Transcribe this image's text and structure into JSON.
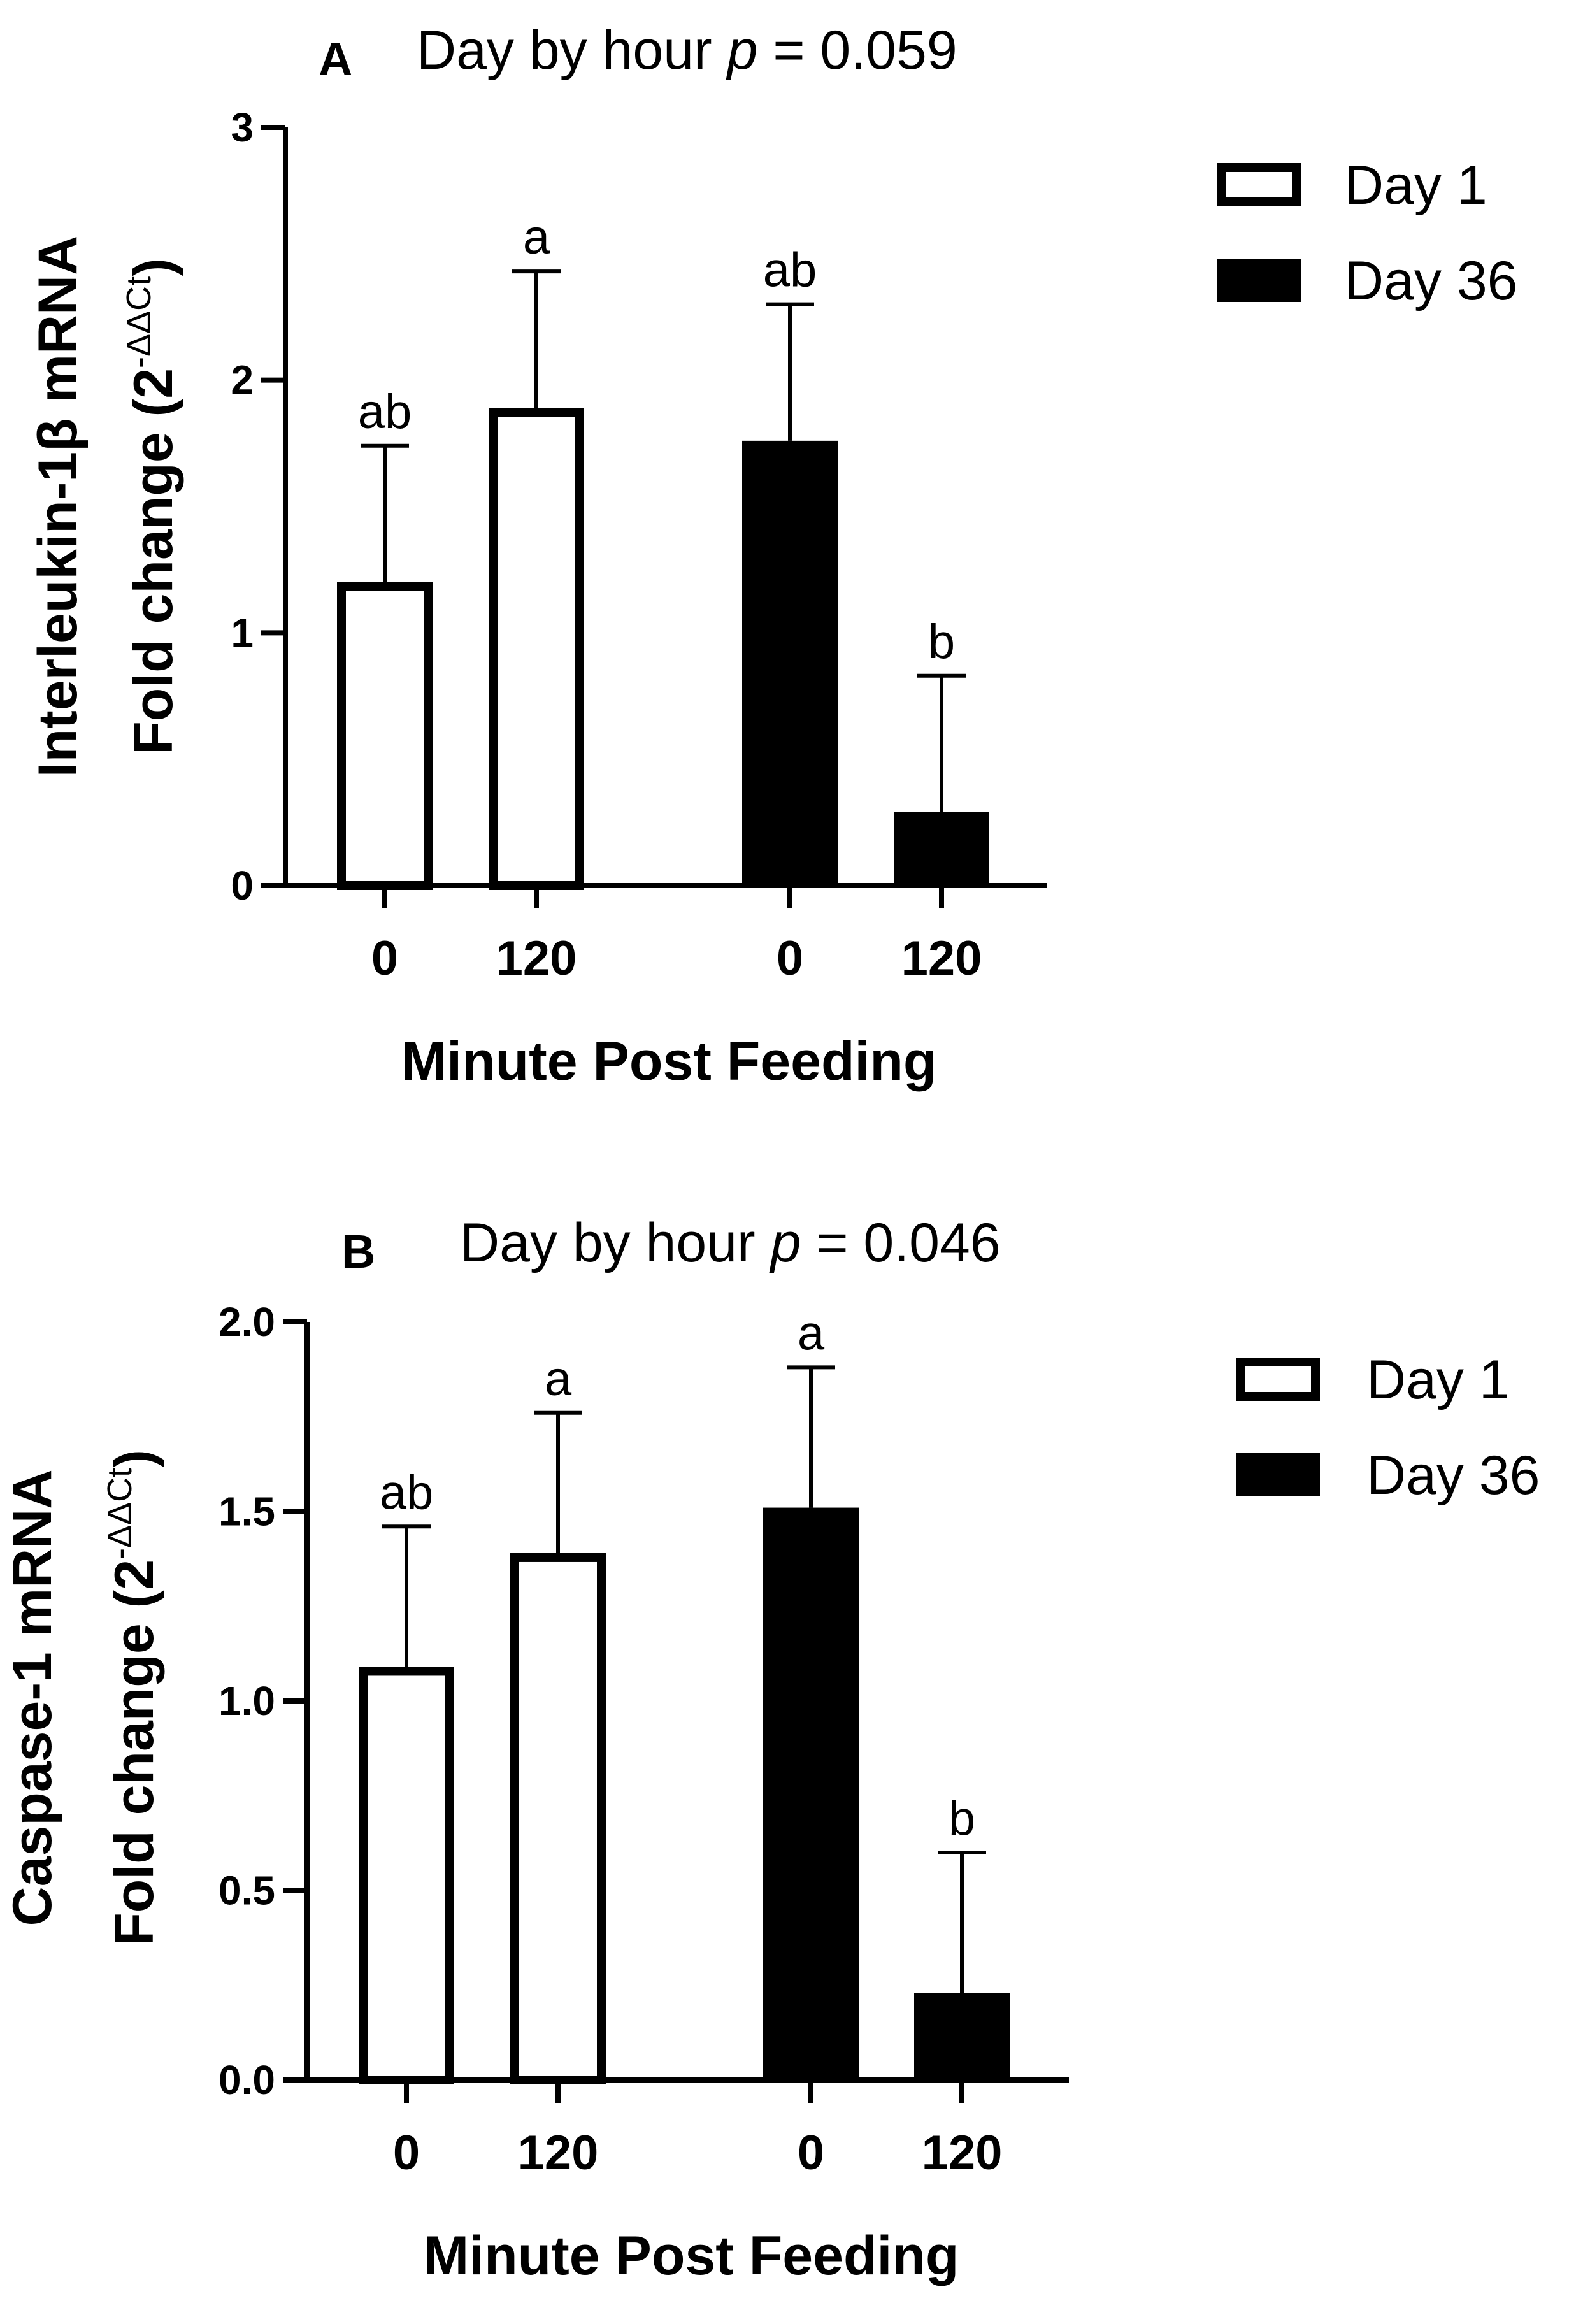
{
  "chart_data": [
    {
      "type": "bar",
      "panel": "A",
      "title_prefix": "Day by hour ",
      "title_italic": "p",
      "title_suffix": " = 0.059",
      "ylabel_line1": "Interleukin-1β mRNA",
      "ylabel_line2": "Fold change (2",
      "ylabel_sup": "-ΔΔCt",
      "ylabel_close": ")",
      "xlabel": "Minute Post Feeding",
      "ylim": [
        0,
        3
      ],
      "yticks": [
        0,
        1,
        2,
        3
      ],
      "ytick_labels": [
        "0",
        "1",
        "2",
        "3"
      ],
      "categories": [
        "0",
        "120",
        "0",
        "120"
      ],
      "groups": [
        "Day 1",
        "Day 1",
        "Day 36",
        "Day 36"
      ],
      "values": [
        1.2,
        1.89,
        1.76,
        0.29
      ],
      "errors": [
        0.54,
        0.54,
        0.54,
        0.54
      ],
      "significance": [
        "ab",
        "a",
        "ab",
        "b"
      ],
      "legend": [
        {
          "label": "Day 1",
          "fill": "#ffffff"
        },
        {
          "label": "Day 36",
          "fill": "#000000"
        }
      ]
    },
    {
      "type": "bar",
      "panel": "B",
      "title_prefix": "Day by hour ",
      "title_italic": "p",
      "title_suffix": " = 0.046",
      "ylabel_line1": "Caspase-1 mRNA",
      "ylabel_line2": "Fold change (2",
      "ylabel_sup": "-ΔΔCt",
      "ylabel_close": ")",
      "xlabel": "Minute Post Feeding",
      "ylim": [
        0,
        2
      ],
      "yticks": [
        0,
        0.5,
        1,
        1.5,
        2
      ],
      "ytick_labels": [
        "0.0",
        "0.5",
        "1.0",
        "1.5",
        "2.0"
      ],
      "categories": [
        "0",
        "120",
        "0",
        "120"
      ],
      "groups": [
        "Day 1",
        "Day 1",
        "Day 36",
        "Day 36"
      ],
      "values": [
        1.09,
        1.39,
        1.51,
        0.23
      ],
      "errors": [
        0.37,
        0.37,
        0.37,
        0.37
      ],
      "significance": [
        "ab",
        "a",
        "a",
        "b"
      ],
      "legend": [
        {
          "label": "Day 1",
          "fill": "#ffffff"
        },
        {
          "label": "Day 36",
          "fill": "#000000"
        }
      ]
    }
  ],
  "colors": {
    "day1_fill": "#ffffff",
    "day36_fill": "#000000",
    "stroke": "#000000"
  }
}
